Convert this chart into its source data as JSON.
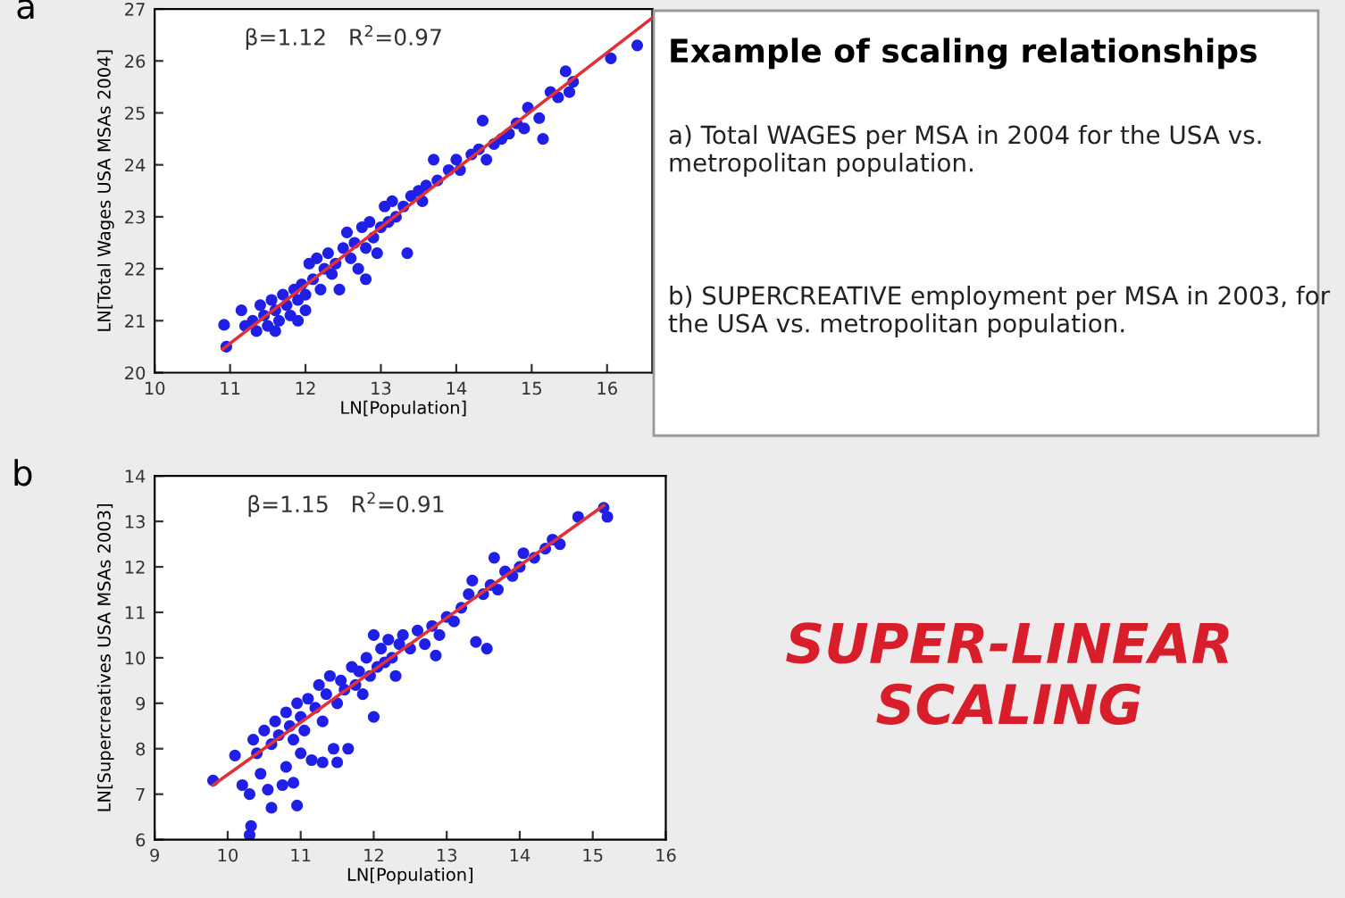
{
  "chart_data": [
    {
      "type": "scatter",
      "title": "a",
      "xlabel": "LN[Population]",
      "ylabel": "LN[Total Wages USA MSAs 2004]",
      "xlim": [
        10,
        16.6
      ],
      "ylim": [
        20,
        27
      ],
      "xticks": [
        10,
        11,
        12,
        13,
        14,
        15,
        16
      ],
      "yticks": [
        20,
        21,
        22,
        23,
        24,
        25,
        26,
        27
      ],
      "annotations": [
        "β=1.12   R$^{2}$=0.97"
      ],
      "series": [
        {
          "type": "scatter",
          "marker": "circle",
          "color": "#1f1fe8",
          "x": [
            10.92,
            10.95,
            11.15,
            11.2,
            11.3,
            11.35,
            11.4,
            11.45,
            11.5,
            11.55,
            11.6,
            11.6,
            11.65,
            11.7,
            11.75,
            11.8,
            11.85,
            11.9,
            11.9,
            11.95,
            12.0,
            12.0,
            12.05,
            12.1,
            12.15,
            12.2,
            12.25,
            12.3,
            12.35,
            12.4,
            12.45,
            12.5,
            12.55,
            12.6,
            12.65,
            12.7,
            12.75,
            12.8,
            12.8,
            12.85,
            12.9,
            12.95,
            13.0,
            13.05,
            13.1,
            13.15,
            13.2,
            13.3,
            13.35,
            13.4,
            13.5,
            13.55,
            13.6,
            13.7,
            13.75,
            13.9,
            14.0,
            14.05,
            14.2,
            14.3,
            14.35,
            14.4,
            14.5,
            14.6,
            14.7,
            14.8,
            14.9,
            14.95,
            15.1,
            15.15,
            15.25,
            15.35,
            15.45,
            15.5,
            15.55,
            16.05,
            16.4
          ],
          "values": [
            20.92,
            20.5,
            21.2,
            20.9,
            21.0,
            20.8,
            21.3,
            21.1,
            20.9,
            21.4,
            21.2,
            20.8,
            21.0,
            21.5,
            21.3,
            21.1,
            21.6,
            21.4,
            21.0,
            21.7,
            21.5,
            21.2,
            22.1,
            21.8,
            22.2,
            21.6,
            22.0,
            22.3,
            21.9,
            22.1,
            21.6,
            22.4,
            22.7,
            22.2,
            22.5,
            22.0,
            22.8,
            22.4,
            21.8,
            22.9,
            22.6,
            22.3,
            22.8,
            23.2,
            22.9,
            23.3,
            23.0,
            23.2,
            22.3,
            23.4,
            23.5,
            23.3,
            23.6,
            24.1,
            23.7,
            23.9,
            24.1,
            23.9,
            24.2,
            24.3,
            24.85,
            24.1,
            24.4,
            24.5,
            24.6,
            24.8,
            24.7,
            25.1,
            24.9,
            24.5,
            25.4,
            25.3,
            25.8,
            25.4,
            25.6,
            26.05,
            26.3
          ]
        },
        {
          "type": "line",
          "color": "#e0303a",
          "x": [
            10.9,
            16.6
          ],
          "values": [
            20.45,
            26.83
          ]
        }
      ]
    },
    {
      "type": "scatter",
      "title": "b",
      "xlabel": "LN[Population]",
      "ylabel": "LN[Supercreatives USA MSAs 2003]",
      "xlim": [
        9,
        16
      ],
      "ylim": [
        6,
        14
      ],
      "xticks": [
        9,
        10,
        11,
        12,
        13,
        14,
        15,
        16
      ],
      "yticks": [
        6,
        7,
        8,
        9,
        10,
        11,
        12,
        13,
        14
      ],
      "annotations": [
        "β=1.15   R$^{2}$=0.91"
      ],
      "series": [
        {
          "type": "scatter",
          "marker": "circle",
          "color": "#1f1fe8",
          "x": [
            9.8,
            10.1,
            10.2,
            10.3,
            10.32,
            10.3,
            10.35,
            10.4,
            10.45,
            10.5,
            10.55,
            10.6,
            10.6,
            10.65,
            10.7,
            10.75,
            10.8,
            10.8,
            10.85,
            10.9,
            10.9,
            10.95,
            10.95,
            11.0,
            11.0,
            11.05,
            11.1,
            11.15,
            11.2,
            11.25,
            11.3,
            11.3,
            11.35,
            11.4,
            11.45,
            11.5,
            11.5,
            11.55,
            11.6,
            11.65,
            11.7,
            11.75,
            11.8,
            11.85,
            11.9,
            11.95,
            12.0,
            12.0,
            12.05,
            12.1,
            12.15,
            12.2,
            12.25,
            12.3,
            12.35,
            12.4,
            12.5,
            12.6,
            12.7,
            12.8,
            12.85,
            12.9,
            13.0,
            13.1,
            13.2,
            13.3,
            13.35,
            13.4,
            13.5,
            13.55,
            13.6,
            13.65,
            13.7,
            13.8,
            13.9,
            14.0,
            14.05,
            14.2,
            14.35,
            14.45,
            14.55,
            14.8,
            15.15,
            15.2
          ],
          "values": [
            7.3,
            7.85,
            7.2,
            6.1,
            6.3,
            7.0,
            8.2,
            7.9,
            7.45,
            8.4,
            7.1,
            6.7,
            8.1,
            8.6,
            8.3,
            7.2,
            7.6,
            8.8,
            8.5,
            7.25,
            8.2,
            6.75,
            9.0,
            8.7,
            7.9,
            8.4,
            9.1,
            7.75,
            8.9,
            9.4,
            8.6,
            7.7,
            9.2,
            9.6,
            8.0,
            9.0,
            7.7,
            9.5,
            9.3,
            8.0,
            9.8,
            9.4,
            9.7,
            9.2,
            10.0,
            9.6,
            10.5,
            8.7,
            9.8,
            10.2,
            9.9,
            10.4,
            10.0,
            9.6,
            10.3,
            10.5,
            10.2,
            10.6,
            10.3,
            10.7,
            10.05,
            10.5,
            10.9,
            10.8,
            11.1,
            11.4,
            11.7,
            10.35,
            11.4,
            10.2,
            11.6,
            12.2,
            11.5,
            11.9,
            11.8,
            12.0,
            12.3,
            12.2,
            12.4,
            12.6,
            12.5,
            13.1,
            13.3,
            13.1
          ]
        },
        {
          "type": "line",
          "color": "#e0303a",
          "x": [
            9.8,
            15.15
          ],
          "values": [
            7.2,
            13.35
          ]
        }
      ]
    },
    {
      "type": "other",
      "title": "Example of scaling relationships",
      "annotations": [
        "a) Total WAGES per MSA in 2004 for the USA vs. metropolitan population.",
        "b) SUPERCREATIVE employment per MSA in 2003, for the USA vs. metropolitan population.",
        "SUPER-LINEAR SCALING"
      ]
    }
  ]
}
